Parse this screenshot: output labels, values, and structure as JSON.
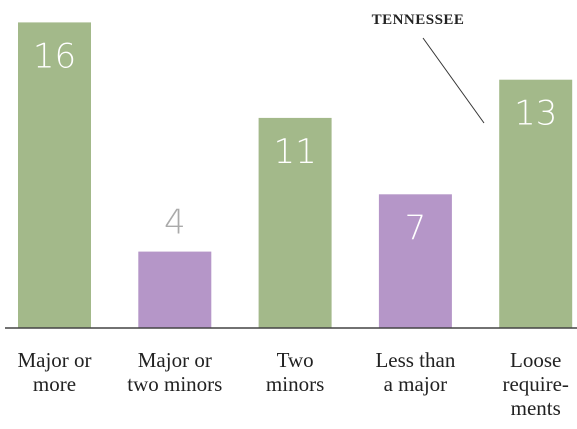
{
  "chart_data": {
    "type": "bar",
    "categories": [
      [
        "Major or",
        "more"
      ],
      [
        "Major or",
        "two minors"
      ],
      [
        "Two",
        "minors"
      ],
      [
        "Less than",
        "a major"
      ],
      [
        "Loose",
        "require-",
        "ments"
      ]
    ],
    "values": [
      16,
      4,
      11,
      7,
      13
    ],
    "colors": [
      "#a3b98a",
      "#b596c8",
      "#a3b98a",
      "#b596c8",
      "#a3b98a"
    ],
    "annotation": {
      "text": "TENNESSEE",
      "category": 4
    }
  }
}
